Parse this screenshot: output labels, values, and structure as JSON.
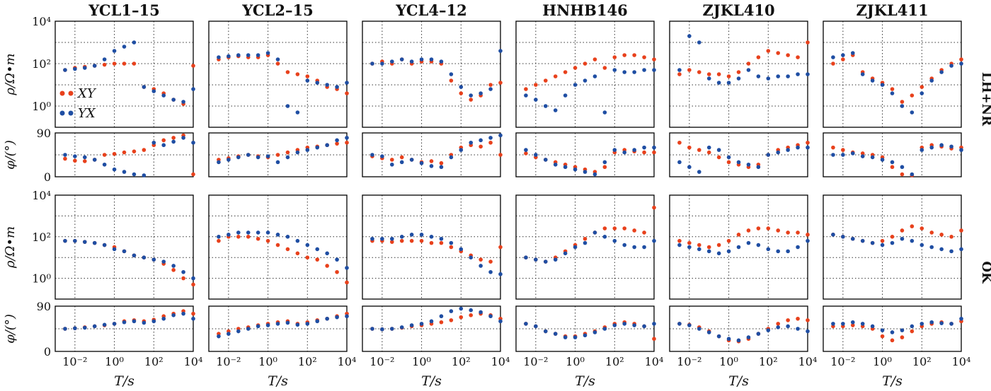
{
  "figure": {
    "columns": [
      "YCL1–15",
      "YCL2–15",
      "YCL4–12",
      "HNHB146",
      "ZJKL410",
      "ZJKL411"
    ],
    "row_labels": {
      "top": "LH+NR",
      "bottom": "OK"
    },
    "rho_ylabel": "ρ/Ω•m",
    "phi_ylabel": "φ/(°)",
    "xlabel": "T/s",
    "rho_ticks": [
      {
        "v": 0,
        "label": "10⁰"
      },
      {
        "v": 2,
        "label": "10²"
      },
      {
        "v": 4,
        "label": "10⁴"
      }
    ],
    "phi_ticks": [
      {
        "v": 0,
        "label": "0"
      },
      {
        "v": 90,
        "label": "90"
      }
    ],
    "x_ticks": [
      {
        "v": -2,
        "label": "10⁻²"
      },
      {
        "v": 0,
        "label": "10⁰"
      },
      {
        "v": 2,
        "label": "10²"
      },
      {
        "v": 4,
        "label": "10⁴"
      }
    ],
    "legend": {
      "xy": "XY",
      "yx": "YX"
    },
    "colors": {
      "xy": "#e8411c",
      "yx": "#1f4ea3",
      "grid": "#333333"
    }
  },
  "chart_data": {
    "type": "scatter",
    "x_scale": "log10",
    "x": [
      -2.5,
      -2.0,
      -1.5,
      -1.0,
      -0.5,
      0.0,
      0.5,
      1.0,
      1.5,
      2.0,
      2.5,
      3.0,
      3.5,
      4.0
    ],
    "xlim": [
      -3.0,
      4.0
    ],
    "rho_ylim": [
      -1.0,
      4.0
    ],
    "phi_ylim": [
      0,
      90
    ],
    "series_names": [
      "XY",
      "YX"
    ],
    "panels": [
      {
        "column": "YCL1–15",
        "lh_nr": {
          "rho": {
            "xy": [
              1.7,
              1.8,
              1.85,
              1.9,
              1.95,
              2.0,
              2.0,
              2.0,
              0.9,
              0.8,
              0.6,
              0.3,
              0.1,
              1.9
            ],
            "yx": [
              1.7,
              1.75,
              1.8,
              1.9,
              2.2,
              2.6,
              2.8,
              3.0,
              0.9,
              0.7,
              0.5,
              0.3,
              0.2,
              0.8
            ]
          },
          "phi": {
            "xy": [
              37,
              33,
              32,
              35,
              45,
              47,
              50,
              52,
              55,
              65,
              75,
              80,
              85,
              5
            ],
            "yx": [
              45,
              42,
              40,
              35,
              25,
              15,
              10,
              5,
              2,
              70,
              65,
              72,
              80,
              70
            ]
          }
        },
        "ok": {
          "rho": {
            "xy": [
              1.8,
              1.8,
              1.75,
              1.7,
              1.6,
              1.5,
              1.3,
              1.1,
              1.0,
              0.9,
              0.7,
              0.4,
              0.0,
              -0.3
            ],
            "yx": [
              1.8,
              1.8,
              1.75,
              1.7,
              1.6,
              1.4,
              1.3,
              1.1,
              1.0,
              0.9,
              0.8,
              0.6,
              0.3,
              0.0
            ]
          },
          "phi": {
            "xy": [
              45,
              46,
              48,
              50,
              52,
              55,
              60,
              62,
              60,
              63,
              70,
              75,
              80,
              75
            ],
            "yx": [
              45,
              46,
              47,
              50,
              53,
              55,
              58,
              60,
              57,
              60,
              65,
              72,
              75,
              65
            ]
          }
        }
      },
      {
        "column": "YCL2–15",
        "lh_nr": {
          "rho": {
            "xy": [
              2.2,
              2.3,
              2.35,
              2.3,
              2.3,
              2.4,
              2.0,
              1.6,
              1.5,
              1.4,
              1.2,
              0.9,
              0.8,
              0.6
            ],
            "yx": [
              2.3,
              2.35,
              2.4,
              2.4,
              2.4,
              2.5,
              2.2,
              0.0,
              -0.3,
              1.2,
              1.1,
              1.0,
              0.9,
              1.1
            ]
          },
          "phi": {
            "xy": [
              35,
              38,
              42,
              45,
              42,
              40,
              45,
              50,
              55,
              60,
              62,
              65,
              68,
              70
            ],
            "yx": [
              30,
              35,
              40,
              45,
              40,
              42,
              30,
              40,
              50,
              55,
              60,
              65,
              75,
              80
            ]
          }
        },
        "ok": {
          "rho": {
            "xy": [
              1.8,
              2.0,
              2.0,
              2.0,
              1.9,
              1.8,
              1.6,
              1.4,
              1.2,
              1.0,
              0.9,
              0.6,
              0.3,
              -0.2
            ],
            "yx": [
              2.0,
              2.1,
              2.2,
              2.2,
              2.2,
              2.2,
              2.1,
              2.0,
              1.8,
              1.6,
              1.4,
              1.2,
              0.9,
              0.5
            ]
          },
          "phi": {
            "xy": [
              35,
              40,
              45,
              48,
              52,
              55,
              58,
              60,
              55,
              58,
              62,
              65,
              70,
              75
            ],
            "yx": [
              30,
              35,
              40,
              45,
              50,
              52,
              55,
              57,
              53,
              55,
              60,
              65,
              68,
              70
            ]
          }
        }
      },
      {
        "column": "YCL4–12",
        "lh_nr": {
          "rho": {
            "xy": [
              2.0,
              2.1,
              2.0,
              2.2,
              2.0,
              2.1,
              2.1,
              2.0,
              1.2,
              0.6,
              0.3,
              0.5,
              1.0,
              1.1
            ],
            "yx": [
              2.0,
              2.0,
              2.1,
              2.2,
              2.1,
              2.2,
              2.2,
              2.1,
              1.5,
              0.9,
              0.5,
              0.6,
              0.8,
              2.6
            ]
          },
          "phi": {
            "xy": [
              42,
              38,
              35,
              40,
              35,
              30,
              32,
              28,
              45,
              60,
              65,
              62,
              70,
              45
            ],
            "yx": [
              45,
              42,
              25,
              30,
              35,
              28,
              22,
              20,
              40,
              55,
              70,
              75,
              80,
              85
            ]
          }
        },
        "ok": {
          "rho": {
            "xy": [
              1.8,
              1.8,
              1.75,
              1.8,
              1.8,
              1.8,
              1.7,
              1.7,
              1.5,
              1.3,
              1.1,
              0.9,
              0.8,
              1.5
            ],
            "yx": [
              1.9,
              1.9,
              1.9,
              2.0,
              2.1,
              2.1,
              2.0,
              1.9,
              1.7,
              1.4,
              1.0,
              0.6,
              0.3,
              0.2
            ]
          },
          "phi": {
            "xy": [
              45,
              44,
              45,
              47,
              50,
              52,
              55,
              58,
              62,
              68,
              72,
              75,
              72,
              65
            ],
            "yx": [
              45,
              44,
              45,
              48,
              52,
              55,
              60,
              70,
              80,
              85,
              82,
              78,
              70,
              60
            ]
          }
        }
      },
      {
        "column": "HNHB146",
        "lh_nr": {
          "rho": {
            "xy": [
              0.8,
              1.0,
              1.2,
              1.4,
              1.6,
              1.8,
              2.0,
              2.2,
              1.8,
              2.3,
              2.4,
              2.4,
              2.3,
              2.2
            ],
            "yx": [
              0.5,
              0.3,
              0.0,
              -0.2,
              0.5,
              1.0,
              1.2,
              1.4,
              -0.3,
              1.7,
              1.6,
              1.6,
              1.7,
              1.7
            ]
          },
          "phi": {
            "xy": [
              48,
              40,
              35,
              30,
              25,
              20,
              15,
              10,
              20,
              50,
              55,
              52,
              50,
              50
            ],
            "yx": [
              55,
              45,
              35,
              25,
              20,
              15,
              10,
              5,
              30,
              55,
              50,
              55,
              60,
              60
            ]
          }
        },
        "ok": {
          "rho": {
            "xy": [
              1.0,
              0.9,
              0.8,
              1.0,
              1.3,
              1.6,
              1.9,
              2.2,
              2.4,
              2.4,
              2.4,
              2.3,
              2.2,
              3.4
            ],
            "yx": [
              1.0,
              0.9,
              0.8,
              0.9,
              1.2,
              1.5,
              1.7,
              2.2,
              2.0,
              1.8,
              1.6,
              1.5,
              1.5,
              1.8
            ]
          },
          "phi": {
            "xy": [
              55,
              50,
              40,
              35,
              30,
              30,
              35,
              40,
              48,
              55,
              58,
              55,
              50,
              25
            ],
            "yx": [
              55,
              50,
              40,
              35,
              28,
              28,
              32,
              38,
              45,
              52,
              55,
              52,
              50,
              55
            ]
          }
        }
      },
      {
        "column": "ZJKL410",
        "lh_nr": {
          "rho": {
            "xy": [
              1.5,
              1.7,
              1.6,
              1.5,
              1.5,
              1.4,
              1.6,
              2.0,
              2.3,
              2.6,
              2.5,
              2.4,
              2.3,
              3.0
            ],
            "yx": [
              1.7,
              3.3,
              3.0,
              1.3,
              1.1,
              1.1,
              1.3,
              1.7,
              1.4,
              1.3,
              1.4,
              1.4,
              1.5,
              1.5
            ]
          },
          "phi": {
            "xy": [
              70,
              60,
              55,
              50,
              40,
              30,
              25,
              20,
              25,
              45,
              55,
              60,
              65,
              70
            ],
            "yx": [
              30,
              20,
              10,
              60,
              55,
              40,
              30,
              25,
              20,
              45,
              50,
              55,
              60,
              60
            ]
          }
        },
        "ok": {
          "rho": {
            "xy": [
              1.8,
              1.7,
              1.6,
              1.5,
              1.6,
              1.8,
              2.1,
              2.3,
              2.4,
              2.4,
              2.3,
              2.2,
              2.2,
              2.1
            ],
            "yx": [
              1.6,
              1.5,
              1.4,
              1.3,
              1.2,
              1.3,
              1.5,
              1.7,
              1.6,
              1.4,
              1.3,
              1.3,
              1.5,
              1.8
            ]
          },
          "phi": {
            "xy": [
              55,
              53,
              48,
              40,
              30,
              22,
              20,
              25,
              35,
              45,
              55,
              62,
              65,
              62
            ],
            "yx": [
              55,
              52,
              45,
              38,
              30,
              25,
              22,
              28,
              35,
              42,
              48,
              50,
              45,
              40
            ]
          }
        }
      },
      {
        "column": "ZJKL411",
        "lh_nr": {
          "rho": {
            "xy": [
              2.0,
              2.2,
              2.4,
              1.6,
              1.3,
              1.1,
              0.8,
              0.2,
              0.5,
              0.9,
              1.3,
              1.7,
              2.0,
              2.2
            ],
            "yx": [
              2.3,
              2.4,
              2.5,
              1.5,
              1.2,
              1.0,
              0.6,
              0.0,
              -0.3,
              0.6,
              1.2,
              1.6,
              1.9,
              2.0
            ]
          },
          "phi": {
            "xy": [
              60,
              55,
              50,
              48,
              45,
              40,
              20,
              5,
              0,
              60,
              65,
              62,
              58,
              60
            ],
            "yx": [
              45,
              45,
              48,
              42,
              40,
              35,
              30,
              20,
              5,
              55,
              60,
              65,
              62,
              55
            ]
          }
        },
        "ok": {
          "rho": {
            "xy": [
              2.1,
              2.0,
              1.9,
              1.8,
              1.7,
              1.8,
              2.0,
              2.3,
              2.5,
              2.4,
              2.2,
              2.1,
              2.0,
              2.3
            ],
            "yx": [
              2.1,
              2.0,
              1.9,
              1.8,
              1.7,
              1.6,
              1.7,
              1.9,
              1.8,
              1.6,
              1.5,
              1.4,
              1.3,
              1.4
            ]
          },
          "phi": {
            "xy": [
              50,
              50,
              52,
              50,
              45,
              30,
              22,
              28,
              40,
              50,
              55,
              58,
              55,
              60
            ],
            "yx": [
              55,
              55,
              58,
              55,
              50,
              42,
              38,
              42,
              50,
              55,
              58,
              56,
              55,
              65
            ]
          }
        }
      }
    ]
  }
}
